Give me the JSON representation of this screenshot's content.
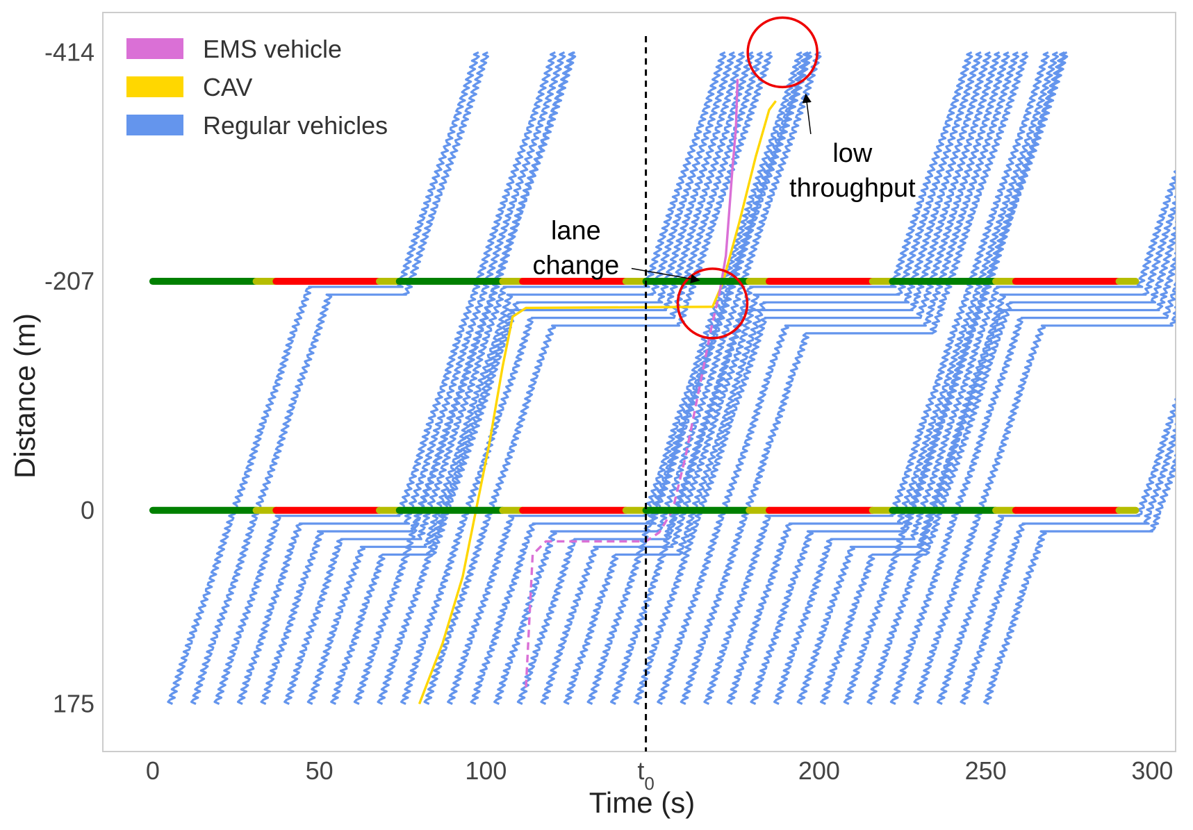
{
  "chart_data": {
    "type": "line",
    "xlabel": "Time (s)",
    "ylabel": "Distance (m)",
    "xlim": [
      -15,
      307
    ],
    "ylim": [
      -450,
      218
    ],
    "x_ticks": [
      {
        "value": 0,
        "label": "0"
      },
      {
        "value": 50,
        "label": "50"
      },
      {
        "value": 100,
        "label": "100"
      },
      {
        "value": 148,
        "label": "t",
        "sub": "0"
      },
      {
        "value": 200,
        "label": "200"
      },
      {
        "value": 250,
        "label": "250"
      },
      {
        "value": 300,
        "label": "300"
      }
    ],
    "y_ticks": [
      {
        "value": -414,
        "label": "-414"
      },
      {
        "value": -207,
        "label": "-207"
      },
      {
        "value": 0,
        "label": "0"
      },
      {
        "value": 175,
        "label": "175"
      }
    ],
    "grid": false,
    "legend_position": "top-left",
    "legend": [
      {
        "label": "EMS vehicle",
        "color": "#DA70D6"
      },
      {
        "label": "CAV",
        "color": "#FFD700"
      },
      {
        "label": "Regular vehicles",
        "color": "#6495ED"
      }
    ],
    "t0_line": {
      "x": 148,
      "style": "dashed",
      "color": "#000000"
    },
    "signal_cycle": {
      "start": 0,
      "end": 295,
      "period": 74,
      "green": 31,
      "yellow": 6,
      "red": 31,
      "colors": {
        "green": "#008000",
        "yellow": "#B5BD00",
        "red": "#FF0000"
      }
    },
    "signals": [
      {
        "name": "upstream intersection",
        "y": -207
      },
      {
        "name": "downstream intersection",
        "y": 0
      }
    ],
    "trajectory_series": [
      {
        "name": "Regular vehicles",
        "color": "#6495ED",
        "style": "solid",
        "entry_times": [
          5,
          12,
          19,
          26,
          33,
          40,
          47,
          54,
          61,
          68,
          75,
          82,
          89,
          96,
          103,
          110,
          117,
          124,
          131,
          138,
          145,
          152,
          159,
          166,
          173,
          180,
          187,
          194,
          201,
          208,
          215,
          222,
          229,
          236,
          243,
          250
        ]
      },
      {
        "name": "CAV",
        "color": "#FFD700",
        "style": "solid",
        "points": [
          [
            80,
            175
          ],
          [
            87,
            120
          ],
          [
            93,
            60
          ],
          [
            97,
            0
          ],
          [
            101,
            -60
          ],
          [
            105,
            -130
          ],
          [
            108,
            -175
          ],
          [
            112,
            -183
          ],
          [
            168,
            -184
          ],
          [
            171,
            -205
          ],
          [
            176,
            -260
          ],
          [
            181,
            -320
          ],
          [
            185,
            -362
          ],
          [
            187,
            -370
          ]
        ]
      },
      {
        "name": "EMS vehicle",
        "color": "#DA70D6",
        "style": "dashed",
        "points": [
          [
            112,
            160
          ],
          [
            114,
            40
          ],
          [
            118,
            28
          ],
          [
            148,
            28
          ],
          [
            152,
            20
          ],
          [
            156,
            0
          ],
          [
            160,
            -50
          ],
          [
            164,
            -110
          ],
          [
            168,
            -170
          ],
          [
            170,
            -195
          ]
        ]
      },
      {
        "name": "EMS vehicle",
        "color": "#DA70D6",
        "style": "solid",
        "points": [
          [
            170,
            -195
          ],
          [
            172,
            -230
          ],
          [
            173,
            -270
          ],
          [
            174,
            -310
          ],
          [
            175,
            -345
          ],
          [
            175.5,
            -390
          ]
        ]
      }
    ],
    "annotations": [
      {
        "text_lines": [
          "lane",
          "change"
        ],
        "text_at": [
          127,
          -245
        ],
        "arrow_to": [
          164,
          -208
        ],
        "circle_center": [
          168,
          -187
        ],
        "circle_radius": 30
      },
      {
        "text_lines": [
          "low",
          "throughput"
        ],
        "text_at": [
          210,
          -315
        ],
        "arrow_to": [
          196,
          -376
        ],
        "circle_center": [
          189,
          -414
        ],
        "circle_radius": 30
      }
    ]
  }
}
